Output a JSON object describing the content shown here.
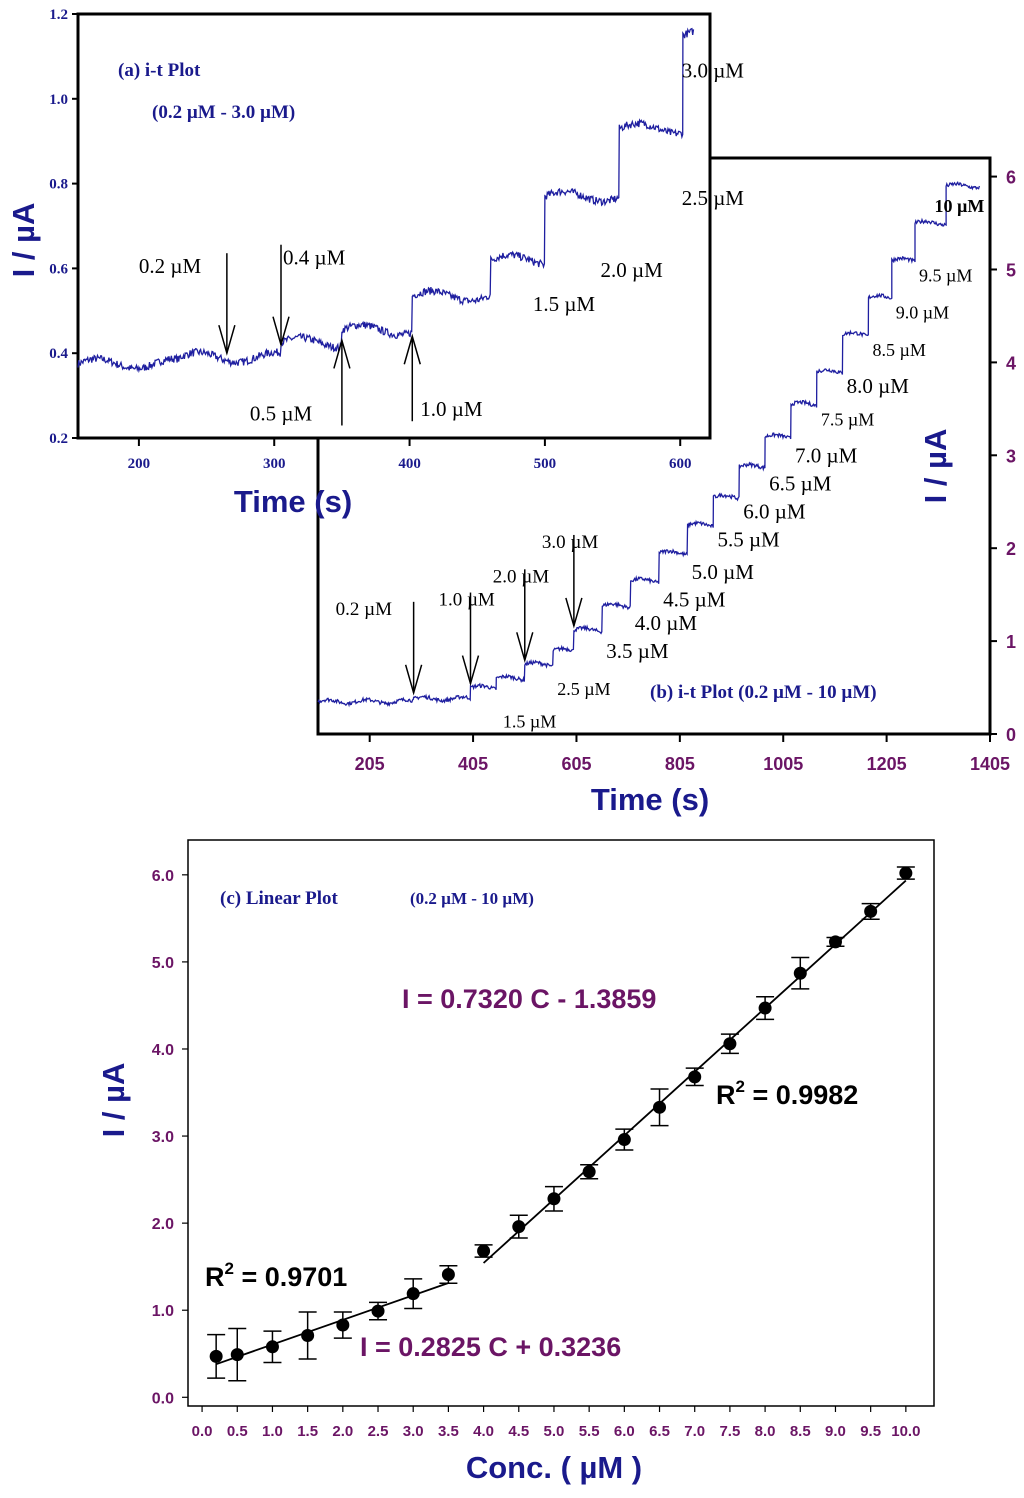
{
  "chart_data": [
    {
      "type": "line",
      "panel_label": "(a) i-t Plot",
      "subtitle": "(0.2 µM - 3.0 µM)",
      "xlabel": "Time (s)",
      "ylabel": "I / µA",
      "xlim": [
        155,
        622
      ],
      "ylim": [
        0.2,
        1.2
      ],
      "xticks": [
        200,
        300,
        400,
        500,
        600
      ],
      "yticks": [
        "0.2",
        "0.4",
        "0.6",
        "0.8",
        "1.0",
        "1.2"
      ],
      "steps": [
        {
          "t": 155,
          "i": 0.375
        },
        {
          "t": 230,
          "i": 0.39
        },
        {
          "t": 305,
          "i": 0.425
        },
        {
          "t": 350,
          "i": 0.455
        },
        {
          "t": 402,
          "i": 0.535
        },
        {
          "t": 460,
          "i": 0.62
        },
        {
          "t": 500,
          "i": 0.77
        },
        {
          "t": 555,
          "i": 0.93
        },
        {
          "t": 602,
          "i": 1.15
        }
      ],
      "annotations": [
        {
          "text": "0.2 µM",
          "t": 265,
          "i": 0.4,
          "arrow": "down"
        },
        {
          "text": "0.4 µM",
          "t": 305,
          "i": 0.42,
          "arrow": "down"
        },
        {
          "text": "0.5 µM",
          "t": 350,
          "i": 0.43,
          "arrow": "up"
        },
        {
          "text": "1.0 µM",
          "t": 402,
          "i": 0.44,
          "arrow": "up"
        },
        {
          "text": "1.5 µM",
          "t": 480,
          "i": 0.5,
          "arrow": "none"
        },
        {
          "text": "2.0 µM",
          "t": 530,
          "i": 0.58,
          "arrow": "none"
        },
        {
          "text": "2.5 µM",
          "t": 590,
          "i": 0.75,
          "arrow": "none"
        },
        {
          "text": "3.0 µM",
          "t": 590,
          "i": 1.05,
          "arrow": "none"
        }
      ]
    },
    {
      "type": "line",
      "panel_label": "(b) i-t Plot (0.2 µM - 10 µM)",
      "xlabel": "Time (s)",
      "ylabel": "I / µA",
      "xlim": [
        105,
        1405
      ],
      "ylim": [
        0,
        6.2
      ],
      "xticks": [
        205,
        405,
        605,
        805,
        1005,
        1205,
        1405
      ],
      "yticks": [
        "0",
        "1",
        "2",
        "3",
        "4",
        "5",
        "6"
      ],
      "steps": [
        {
          "t": 105,
          "i": 0.35
        },
        {
          "t": 290,
          "i": 0.38
        },
        {
          "t": 400,
          "i": 0.5
        },
        {
          "t": 450,
          "i": 0.6
        },
        {
          "t": 505,
          "i": 0.75
        },
        {
          "t": 560,
          "i": 0.9
        },
        {
          "t": 600,
          "i": 1.12
        },
        {
          "t": 655,
          "i": 1.38
        },
        {
          "t": 710,
          "i": 1.65
        },
        {
          "t": 765,
          "i": 1.95
        },
        {
          "t": 820,
          "i": 2.25
        },
        {
          "t": 870,
          "i": 2.55
        },
        {
          "t": 920,
          "i": 2.88
        },
        {
          "t": 970,
          "i": 3.2
        },
        {
          "t": 1020,
          "i": 3.55
        },
        {
          "t": 1070,
          "i": 3.9
        },
        {
          "t": 1120,
          "i": 4.3
        },
        {
          "t": 1170,
          "i": 4.7
        },
        {
          "t": 1215,
          "i": 5.1
        },
        {
          "t": 1260,
          "i": 5.5
        },
        {
          "t": 1320,
          "i": 5.9
        }
      ],
      "annotations": [
        {
          "text": "0.2 µM",
          "t": 290,
          "i": 0.4,
          "arrow": "down"
        },
        {
          "text": "1.0 µM",
          "t": 400,
          "i": 0.5,
          "arrow": "down"
        },
        {
          "text": "2.0 µM",
          "t": 505,
          "i": 0.75,
          "arrow": "down"
        },
        {
          "text": "3.0 µM",
          "t": 600,
          "i": 1.12,
          "arrow": "down"
        },
        {
          "text": "1.5 µM",
          "t": 455,
          "i": 0.35,
          "arrow": "none"
        },
        {
          "text": "2.5 µM",
          "t": 560,
          "i": 0.7,
          "arrow": "none"
        },
        {
          "text": "3.5 µM",
          "t": 655,
          "i": 1.1,
          "arrow": "none"
        },
        {
          "text": "4.0 µM",
          "t": 710,
          "i": 1.4,
          "arrow": "none"
        },
        {
          "text": "4.5 µM",
          "t": 765,
          "i": 1.65,
          "arrow": "none"
        },
        {
          "text": "5.0 µM",
          "t": 820,
          "i": 1.95,
          "arrow": "none"
        },
        {
          "text": "5.5 µM",
          "t": 870,
          "i": 2.3,
          "arrow": "none"
        },
        {
          "text": "6.0 µM",
          "t": 920,
          "i": 2.6,
          "arrow": "none"
        },
        {
          "text": "6.5 µM",
          "t": 970,
          "i": 2.9,
          "arrow": "none"
        },
        {
          "text": "7.0 µM",
          "t": 1020,
          "i": 3.2,
          "arrow": "none"
        },
        {
          "text": "7.5 µM",
          "t": 1070,
          "i": 3.6,
          "arrow": "none"
        },
        {
          "text": "8.0 µM",
          "t": 1120,
          "i": 3.95,
          "arrow": "none"
        },
        {
          "text": "8.5 µM",
          "t": 1170,
          "i": 4.35,
          "arrow": "none"
        },
        {
          "text": "9.0 µM",
          "t": 1215,
          "i": 4.75,
          "arrow": "none"
        },
        {
          "text": "9.5 µM",
          "t": 1260,
          "i": 5.15,
          "arrow": "none"
        },
        {
          "text": "10 µM",
          "t": 1290,
          "i": 5.9,
          "arrow": "none"
        }
      ]
    },
    {
      "type": "scatter",
      "panel_label": "(c) Linear Plot",
      "subtitle": "(0.2 µM - 10 µM)",
      "xlabel": "Conc. ( µM )",
      "ylabel": "I / µA",
      "xlim": [
        -0.2,
        10.4
      ],
      "ylim": [
        -0.1,
        6.4
      ],
      "xticks": [
        "0.0",
        "0.5",
        "1.0",
        "1.5",
        "2.0",
        "2.5",
        "3.0",
        "3.5",
        "4.0",
        "4.5",
        "5.0",
        "5.5",
        "6.0",
        "6.5",
        "7.0",
        "7.5",
        "8.0",
        "8.5",
        "9.0",
        "9.5",
        "10.0"
      ],
      "yticks": [
        "0.0",
        "1.0",
        "2.0",
        "3.0",
        "4.0",
        "5.0",
        "6.0"
      ],
      "x": [
        0.2,
        0.5,
        1.0,
        1.5,
        2.0,
        2.5,
        3.0,
        3.5,
        4.0,
        4.5,
        5.0,
        5.5,
        6.0,
        6.5,
        7.0,
        7.5,
        8.0,
        8.5,
        9.0,
        9.5,
        10.0
      ],
      "y": [
        0.47,
        0.49,
        0.58,
        0.71,
        0.83,
        0.99,
        1.19,
        1.41,
        1.68,
        1.96,
        2.28,
        2.59,
        2.96,
        3.33,
        3.68,
        4.06,
        4.47,
        4.87,
        5.23,
        5.58,
        6.02
      ],
      "err": [
        0.25,
        0.3,
        0.18,
        0.27,
        0.15,
        0.1,
        0.17,
        0.1,
        0.07,
        0.13,
        0.14,
        0.08,
        0.12,
        0.21,
        0.1,
        0.11,
        0.13,
        0.18,
        0.05,
        0.09,
        0.07
      ],
      "fits": [
        {
          "slope": 0.2825,
          "intercept": 0.3236,
          "x_range": [
            0.2,
            3.5
          ],
          "equation": "I =  0.2825 C +  0.3236",
          "r2_label": "R",
          "r2_sup": "2",
          "r2_value": " = 0.9701"
        },
        {
          "slope": 0.732,
          "intercept": -1.3859,
          "x_range": [
            4.0,
            10.0
          ],
          "equation": "I =  0.7320 C -  1.3859",
          "r2_label": "R",
          "r2_sup": "2",
          "r2_value": " = 0.9982"
        }
      ]
    }
  ]
}
